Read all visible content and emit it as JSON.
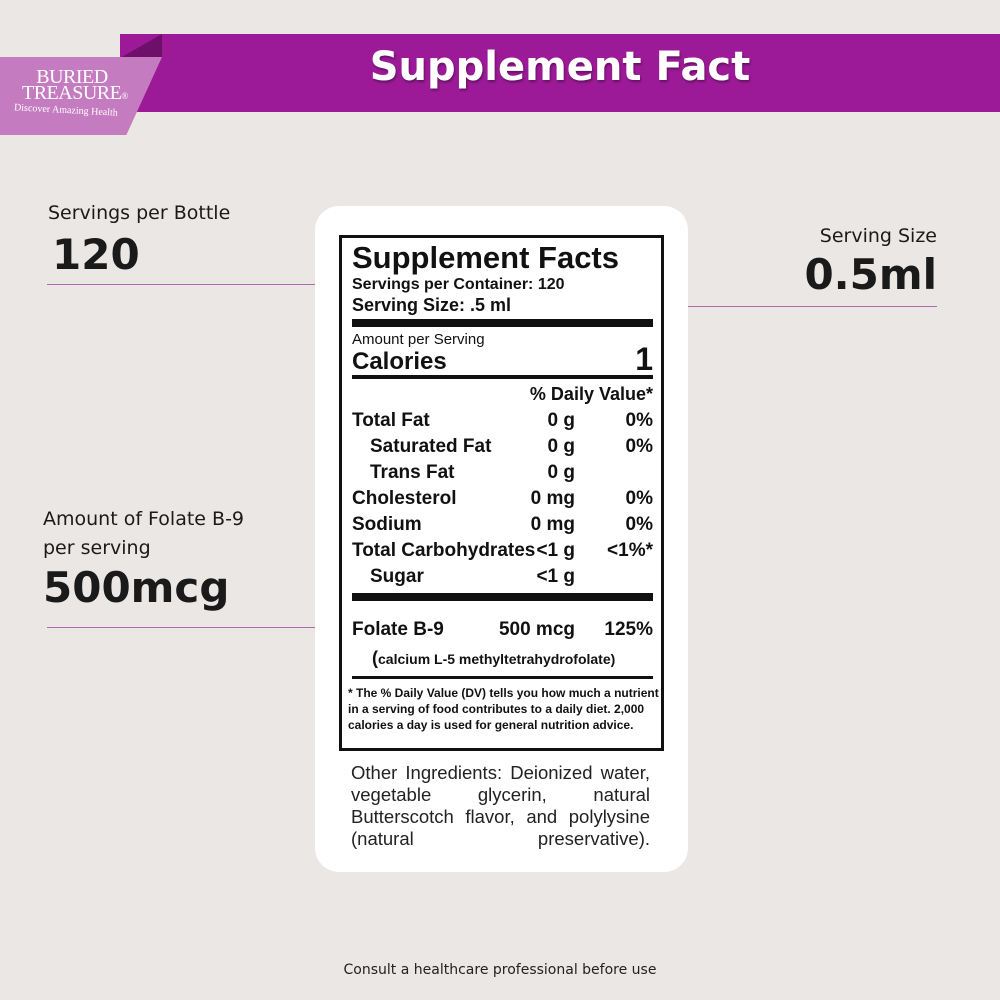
{
  "brand": {
    "logo_line1": "BURIED",
    "logo_line2": "TREASURE",
    "logo_mark": "®",
    "tagline": "Discover Amazing Health"
  },
  "banner": {
    "title": "Supplement Fact",
    "color": "#9c1a97"
  },
  "callouts": {
    "servings_label": "Servings per Bottle",
    "servings_value": "120",
    "serving_size_label": "Serving Size",
    "serving_size_value": "0.5ml",
    "folate_label_1": "Amount of Folate B-9",
    "folate_label_2": "per serving",
    "folate_value": "500mcg"
  },
  "facts": {
    "title": "Supplement Facts",
    "servings_per_container": "Servings per Container: 120",
    "serving_size": "Serving Size: .5 ml",
    "amount_per_serving": "Amount per Serving",
    "calories_label": "Calories",
    "calories_value": "1",
    "dv_header": "% Daily Value*",
    "rows": [
      {
        "name": "Total Fat",
        "amount": "0 g",
        "dv": "0%",
        "indent": false
      },
      {
        "name": "Saturated Fat",
        "amount": "0 g",
        "dv": "0%",
        "indent": true
      },
      {
        "name": "Trans Fat",
        "amount": "0 g",
        "dv": "",
        "indent": true
      },
      {
        "name": "Cholesterol",
        "amount": "0 mg",
        "dv": "0%",
        "indent": false
      },
      {
        "name": "Sodium",
        "amount": "0 mg",
        "dv": "0%",
        "indent": false
      },
      {
        "name": "Total Carbohydrates",
        "amount": "<1 g",
        "dv": "<1%*",
        "indent": false
      },
      {
        "name": "Sugar",
        "amount": "<1 g",
        "dv": "",
        "indent": true
      }
    ],
    "folate": {
      "name": "Folate B-9",
      "amount": "500 mcg",
      "dv": "125%",
      "form": "calcium L-5 methyltetrahydrofolate"
    },
    "footnote_1": "* The % Daily Value (DV) tells you how much a nutrient",
    "footnote_2": "in a serving of food contributes to a daily diet. 2,000",
    "footnote_3": "calories a day is used for general nutrition advice."
  },
  "other_ingredients": "Other Ingredients: Deionized water, vegetable glycerin, natural Butterscotch flavor, and polylysine (natural preservative).",
  "footer": "Consult a healthcare professional before use"
}
